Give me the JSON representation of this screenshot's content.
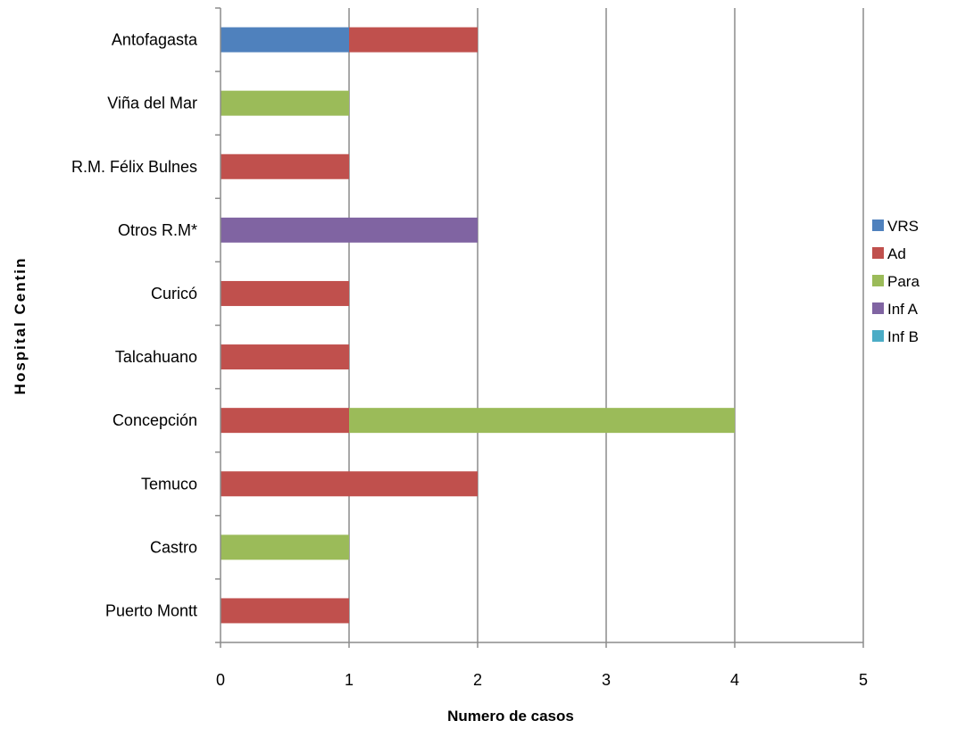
{
  "chart_data": {
    "type": "bar",
    "orientation": "horizontal",
    "stacked": true,
    "categories": [
      "Antofagasta",
      "Viña del Mar",
      "R.M. Félix Bulnes",
      "Otros R.M*",
      "Curicó",
      "Talcahuano",
      "Concepción",
      "Temuco",
      "Castro",
      "Puerto Montt"
    ],
    "series": [
      {
        "name": "VRS",
        "color": "#4F81BD",
        "values": [
          1,
          0,
          0,
          0,
          0,
          0,
          0,
          0,
          0,
          0
        ]
      },
      {
        "name": "Ad",
        "color": "#C0504D",
        "values": [
          1,
          0,
          1,
          0,
          1,
          1,
          1,
          2,
          0,
          1
        ]
      },
      {
        "name": "Para",
        "color": "#9BBB59",
        "values": [
          0,
          1,
          0,
          0,
          0,
          0,
          3,
          0,
          1,
          0
        ]
      },
      {
        "name": "Inf A",
        "color": "#8064A2",
        "values": [
          0,
          0,
          0,
          2,
          0,
          0,
          0,
          0,
          0,
          0
        ]
      },
      {
        "name": "Inf B",
        "color": "#4BACC6",
        "values": [
          0,
          0,
          0,
          0,
          0,
          0,
          0,
          0,
          0,
          0
        ]
      }
    ],
    "xlabel": "Numero de casos",
    "ylabel": "Hospital Centin",
    "xlim": [
      0,
      5
    ],
    "xticks": [
      "0",
      "1",
      "2",
      "3",
      "4",
      "5"
    ],
    "grid": "vertical",
    "legend_position": "right"
  }
}
